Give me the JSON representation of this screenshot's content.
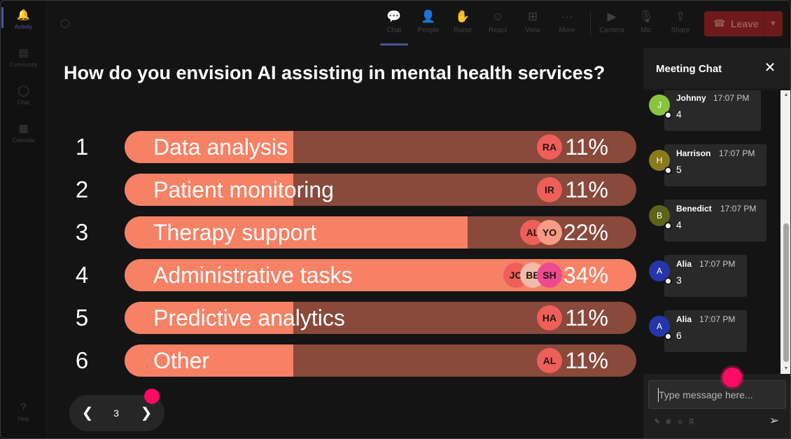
{
  "rail": {
    "items": [
      {
        "label": "Activity",
        "icon": "bell-icon",
        "glyph": "🔔",
        "active": true
      },
      {
        "label": "Community",
        "icon": "community-icon",
        "glyph": "▤",
        "active": false
      },
      {
        "label": "Chat",
        "icon": "chat-icon",
        "glyph": "◯",
        "active": false
      },
      {
        "label": "Calendar",
        "icon": "calendar-icon",
        "glyph": "▦",
        "active": false
      }
    ],
    "help": {
      "label": "Help",
      "icon": "help-icon",
      "glyph": "?"
    }
  },
  "toolbar": {
    "tools": [
      {
        "label": "Chat",
        "icon": "chat-bubble-icon",
        "glyph": "💬"
      },
      {
        "label": "People",
        "icon": "people-icon",
        "glyph": "👤"
      },
      {
        "label": "Raise",
        "icon": "hand-icon",
        "glyph": "✋"
      },
      {
        "label": "React",
        "icon": "smiley-icon",
        "glyph": "☺"
      },
      {
        "label": "View",
        "icon": "grid-icon",
        "glyph": "⊞"
      },
      {
        "label": "More",
        "icon": "more-icon",
        "glyph": "···"
      },
      {
        "label": "Camera",
        "icon": "camera-icon",
        "glyph": "▶"
      },
      {
        "label": "Mic",
        "icon": "mic-icon",
        "glyph": "🎙"
      },
      {
        "label": "Share",
        "icon": "share-icon",
        "glyph": "⇪"
      }
    ],
    "leave_label": "Leave"
  },
  "poll": {
    "question": "How do you envision AI assisting in mental health services?",
    "options": [
      {
        "number": "1",
        "label": "Data analysis",
        "percent": "11%",
        "fill": 0.33,
        "voters": [
          "RA"
        ]
      },
      {
        "number": "2",
        "label": "Patient monitoring",
        "percent": "11%",
        "fill": 0.33,
        "voters": [
          "IR"
        ]
      },
      {
        "number": "3",
        "label": "Therapy support",
        "percent": "22%",
        "fill": 0.67,
        "voters": [
          "AL",
          "YO"
        ]
      },
      {
        "number": "4",
        "label": "Administrative tasks",
        "percent": "34%",
        "fill": 1.0,
        "voters": [
          "JO",
          "BE",
          "SH"
        ]
      },
      {
        "number": "5",
        "label": "Predictive analytics",
        "percent": "11%",
        "fill": 0.33,
        "voters": [
          "HA"
        ]
      },
      {
        "number": "6",
        "label": "Other",
        "percent": "11%",
        "fill": 0.33,
        "voters": [
          "AL"
        ]
      }
    ],
    "page": "3"
  },
  "chat": {
    "title": "Meeting Chat",
    "messages": [
      {
        "initial": "J",
        "name": "Johnny",
        "time": "17:07 PM",
        "text": "4",
        "color": "#8ac43f"
      },
      {
        "initial": "H",
        "name": "Harrison",
        "time": "17:07 PM",
        "text": "5",
        "color": "#8a7a1e"
      },
      {
        "initial": "B",
        "name": "Benedict",
        "time": "17:07 PM",
        "text": "4",
        "color": "#5d6319"
      },
      {
        "initial": "A",
        "name": "Alia",
        "time": "17:07 PM",
        "text": "3",
        "color": "#2436a8"
      },
      {
        "initial": "A",
        "name": "Alia",
        "time": "17:07 PM",
        "text": "6",
        "color": "#2436a8"
      }
    ],
    "input_placeholder": "Type message here...",
    "format_tools": "✎ ⊘ ☺ ⎘"
  },
  "colors": {
    "bar_fill": "#f68165",
    "bar_track": "#89493b",
    "highlight_dot": "#ff0a64"
  }
}
